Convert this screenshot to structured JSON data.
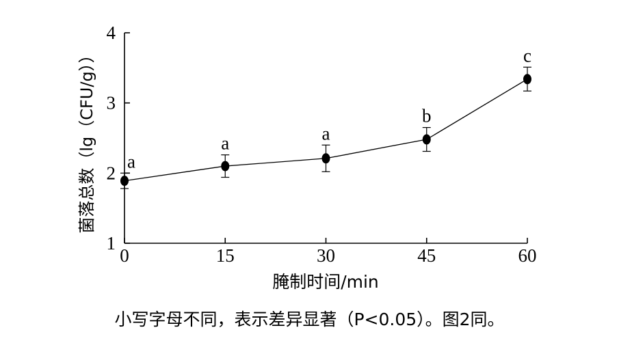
{
  "chart_data": {
    "type": "line",
    "x": [
      0,
      15,
      30,
      45,
      60
    ],
    "x_ticks": [
      "0",
      "15",
      "30",
      "45",
      "60"
    ],
    "y_ticks": [
      "1",
      "2",
      "3",
      "4"
    ],
    "xlim": [
      0,
      60
    ],
    "ylim": [
      1,
      4
    ],
    "series": [
      {
        "values": [
          1.89,
          2.1,
          2.21,
          2.48,
          3.34
        ],
        "errors": [
          0.11,
          0.16,
          0.19,
          0.17,
          0.17
        ],
        "significance": [
          "a",
          "a",
          "a",
          "b",
          "c"
        ]
      }
    ],
    "xlabel": "腌制时间/min",
    "ylabel": "菌落总数（lg（CFU/g））",
    "grid": false,
    "legend": "none"
  },
  "caption": "小写字母不同，表示差异显著（P<0.05）。图2同。",
  "colors": {
    "line": "#000000",
    "marker": "#000000"
  }
}
